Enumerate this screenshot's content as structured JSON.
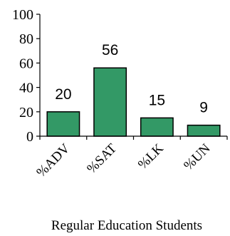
{
  "chart_data": {
    "type": "bar",
    "categories": [
      "%ADV",
      "%SAT",
      "%LK",
      "%UN"
    ],
    "values": [
      20,
      56,
      15,
      9
    ],
    "data_labels": [
      "20",
      "56",
      "15",
      "9"
    ],
    "title": "",
    "xlabel": "Regular Education Students",
    "ylabel": "",
    "ylim": [
      0,
      100
    ],
    "yticks": [
      "0",
      "20",
      "40",
      "60",
      "80",
      "100"
    ],
    "bar_color": "#339966",
    "grid": false,
    "legend": "none"
  }
}
